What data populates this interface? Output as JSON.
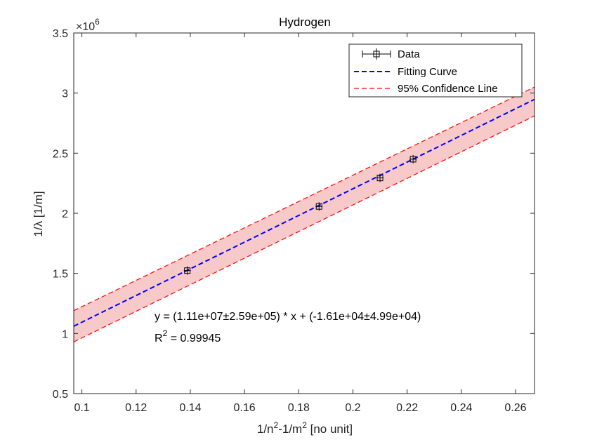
{
  "chart_data": {
    "type": "scatter",
    "title": "Hydrogen",
    "xlabel": {
      "base": "1/n",
      "sup1": "2",
      "mid": "-1/m",
      "sup2": "2",
      "tail": " [no unit]"
    },
    "ylabel": "1/λ [1/m]",
    "y_exponent": {
      "base": "×10",
      "power": "6"
    },
    "xlim": [
      0.097,
      0.267
    ],
    "ylim": [
      0.5,
      3.5
    ],
    "x_ticks": [
      0.1,
      0.12,
      0.14,
      0.16,
      0.18,
      0.2,
      0.22,
      0.24,
      0.26
    ],
    "x_tick_labels": [
      "0.1",
      "0.12",
      "0.14",
      "0.16",
      "0.18",
      "0.2",
      "0.22",
      "0.24",
      "0.26"
    ],
    "y_ticks": [
      0.5,
      1,
      1.5,
      2,
      2.5,
      3,
      3.5
    ],
    "y_tick_labels": [
      "0.5",
      "1",
      "1.5",
      "2",
      "2.5",
      "3",
      "3.5"
    ],
    "series": [
      {
        "name": "Data",
        "kind": "errorbar-points",
        "x": [
          0.1389,
          0.1875,
          0.21,
          0.2222
        ],
        "y": [
          1.523,
          2.057,
          2.294,
          2.45
        ]
      },
      {
        "name": "Fitting Curve",
        "kind": "line",
        "x": [
          0.097,
          0.267
        ],
        "y": [
          1.0606,
          2.9476
        ]
      },
      {
        "name": "95% Confidence Line",
        "kind": "band",
        "x": [
          0.097,
          0.267
        ],
        "upper": [
          1.19,
          3.05
        ],
        "lower": [
          0.93,
          2.81
        ]
      }
    ],
    "legend_position": "top-right",
    "annotations": {
      "equation": "y = (1.11e+07±2.59e+05) * x + (-1.61e+04±4.99e+04)",
      "r2_label": "R",
      "r2_sup": "2",
      "r2_value": " = 0.99945"
    },
    "colors": {
      "fit": "#0000ff",
      "confidence": "#ff0000",
      "band_fill": "#f7c9c9",
      "points": "#000000"
    }
  }
}
